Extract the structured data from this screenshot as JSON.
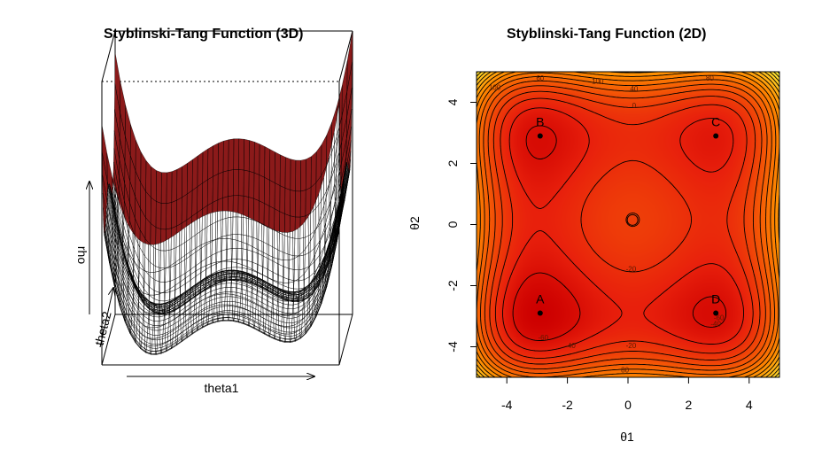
{
  "chart_data": [
    {
      "type": "surface",
      "title": "Styblinski-Tang Function (3D)",
      "xlabel": "theta1",
      "ylabel": "theta2",
      "zlabel": "rho",
      "x_range": [
        -5,
        5
      ],
      "y_range": [
        -5,
        5
      ],
      "surface_color": "#8b1a1a",
      "mesh_color": "#000000"
    },
    {
      "type": "contour",
      "title": "Styblinski-Tang Function (2D)",
      "xlabel": "θ1",
      "ylabel": "θ2",
      "xlim": [
        -5,
        5
      ],
      "ylim": [
        -5,
        5
      ],
      "x_ticks": [
        -4,
        -2,
        0,
        2,
        4
      ],
      "y_ticks": [
        -4,
        -2,
        0,
        2,
        4
      ],
      "contour_labels": [
        "100",
        "80",
        "60",
        "40",
        "20",
        "0",
        "-20",
        "-40",
        "-60"
      ],
      "points": [
        {
          "label": "A",
          "x": -2.9,
          "y": -2.9
        },
        {
          "label": "B",
          "x": -2.9,
          "y": 2.9
        },
        {
          "label": "C",
          "x": 2.9,
          "y": 2.9
        },
        {
          "label": "D",
          "x": 2.9,
          "y": -2.9
        }
      ],
      "center_marker": {
        "x": 0.15,
        "y": 0.15
      },
      "colors": {
        "low": "#e8200c",
        "mid": "#ff8a00",
        "high": "#ffff40"
      }
    }
  ]
}
